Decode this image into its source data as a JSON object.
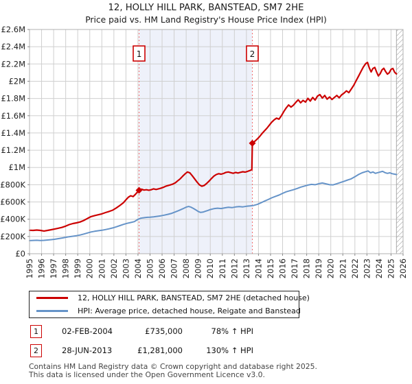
{
  "title": "12, HOLLY HILL PARK, BANSTEAD, SM7 2HE",
  "subtitle": "Price paid vs. HM Land Registry's House Price Index (HPI)",
  "legend": [
    {
      "label": "12, HOLLY HILL PARK, BANSTEAD, SM7 2HE (detached house)",
      "color": "#cc0000"
    },
    {
      "label": "HPI: Average price, detached house, Reigate and Banstead",
      "color": "#6593c8"
    }
  ],
  "annotations": [
    {
      "id": "1",
      "date": "02-FEB-2004",
      "price": "£735,000",
      "hpi_change": "78% ↑ HPI"
    },
    {
      "id": "2",
      "date": "28-JUN-2013",
      "price": "£1,281,000",
      "hpi_change": "130% ↑ HPI"
    }
  ],
  "footer": {
    "line1": "Contains HM Land Registry data © Crown copyright and database right 2025.",
    "line2": "This data is licensed under the Open Government Licence v3.0."
  },
  "chart_data": {
    "type": "line",
    "x_range": [
      1995,
      2026
    ],
    "y_range": [
      0,
      2600
    ],
    "y_unit": "thousand GBP",
    "grid": true,
    "hatch_start": 2025.45,
    "y_ticks": [
      "£0",
      "£200K",
      "£400K",
      "£600K",
      "£800K",
      "£1M",
      "£1.2M",
      "£1.4M",
      "£1.6M",
      "£1.8M",
      "£2M",
      "£2.2M",
      "£2.4M",
      "£2.6M"
    ],
    "x_ticks": [
      "1995",
      "1996",
      "1997",
      "1998",
      "1999",
      "2000",
      "2001",
      "2002",
      "2003",
      "2004",
      "2005",
      "2006",
      "2007",
      "2008",
      "2009",
      "2010",
      "2011",
      "2012",
      "2013",
      "2014",
      "2015",
      "2016",
      "2017",
      "2018",
      "2019",
      "2020",
      "2021",
      "2022",
      "2023",
      "2024",
      "2025",
      "2026"
    ],
    "colors": {
      "property": "#cc0000",
      "hpi": "#6593c8",
      "band": "#eef1fa",
      "grid": "#cfcfcf",
      "frame": "#b0b0b0",
      "marker_line": "#f26a6a",
      "tick": "#888888",
      "hatch": "#bcbcbc",
      "marker_box_text": "#111111"
    },
    "markers": [
      {
        "id": "1",
        "t": 2004.09,
        "value": 735,
        "date": "02-FEB-2004",
        "price_gbp": 735000,
        "vs_hpi": "78% ↑ HPI"
      },
      {
        "id": "2",
        "t": 2013.49,
        "value": 1281,
        "date": "28-JUN-2013",
        "price_gbp": 1281000,
        "vs_hpi": "130% ↑ HPI"
      }
    ],
    "series": [
      {
        "name": "property-price-line",
        "label": "12, HOLLY HILL PARK, BANSTEAD, SM7 2HE (detached house)",
        "color": "#cc0000",
        "width": 2.2,
        "points": [
          [
            1995.0,
            272
          ],
          [
            1995.3,
            270
          ],
          [
            1995.6,
            274
          ],
          [
            1995.9,
            270
          ],
          [
            1996.2,
            263
          ],
          [
            1996.5,
            270
          ],
          [
            1996.8,
            278
          ],
          [
            1997.1,
            287
          ],
          [
            1997.4,
            296
          ],
          [
            1997.7,
            305
          ],
          [
            1998.0,
            320
          ],
          [
            1998.3,
            338
          ],
          [
            1998.6,
            350
          ],
          [
            1998.9,
            358
          ],
          [
            1999.2,
            368
          ],
          [
            1999.5,
            386
          ],
          [
            1999.8,
            408
          ],
          [
            2000.1,
            430
          ],
          [
            2000.4,
            442
          ],
          [
            2000.7,
            452
          ],
          [
            2001.0,
            462
          ],
          [
            2001.3,
            477
          ],
          [
            2001.6,
            490
          ],
          [
            2001.9,
            505
          ],
          [
            2002.2,
            530
          ],
          [
            2002.5,
            560
          ],
          [
            2002.8,
            592
          ],
          [
            2003.0,
            625
          ],
          [
            2003.2,
            655
          ],
          [
            2003.4,
            672
          ],
          [
            2003.6,
            662
          ],
          [
            2003.8,
            690
          ],
          [
            2003.95,
            715
          ],
          [
            2004.09,
            735
          ],
          [
            2004.3,
            748
          ],
          [
            2004.5,
            738
          ],
          [
            2004.7,
            742
          ],
          [
            2004.9,
            736
          ],
          [
            2005.1,
            742
          ],
          [
            2005.3,
            752
          ],
          [
            2005.5,
            745
          ],
          [
            2005.7,
            752
          ],
          [
            2005.9,
            760
          ],
          [
            2006.1,
            770
          ],
          [
            2006.3,
            782
          ],
          [
            2006.5,
            790
          ],
          [
            2006.7,
            798
          ],
          [
            2006.9,
            808
          ],
          [
            2007.1,
            822
          ],
          [
            2007.3,
            845
          ],
          [
            2007.5,
            868
          ],
          [
            2007.7,
            898
          ],
          [
            2007.9,
            925
          ],
          [
            2008.1,
            948
          ],
          [
            2008.3,
            938
          ],
          [
            2008.5,
            905
          ],
          [
            2008.7,
            868
          ],
          [
            2008.9,
            832
          ],
          [
            2009.1,
            798
          ],
          [
            2009.3,
            782
          ],
          [
            2009.5,
            792
          ],
          [
            2009.7,
            815
          ],
          [
            2009.9,
            842
          ],
          [
            2010.1,
            872
          ],
          [
            2010.3,
            900
          ],
          [
            2010.5,
            918
          ],
          [
            2010.7,
            928
          ],
          [
            2010.9,
            922
          ],
          [
            2011.1,
            930
          ],
          [
            2011.3,
            943
          ],
          [
            2011.5,
            948
          ],
          [
            2011.7,
            940
          ],
          [
            2011.9,
            933
          ],
          [
            2012.1,
            942
          ],
          [
            2012.3,
            936
          ],
          [
            2012.5,
            944
          ],
          [
            2012.7,
            950
          ],
          [
            2012.9,
            946
          ],
          [
            2013.1,
            955
          ],
          [
            2013.3,
            965
          ],
          [
            2013.45,
            975
          ],
          [
            2013.49,
            1281
          ],
          [
            2013.7,
            1305
          ],
          [
            2013.9,
            1330
          ],
          [
            2014.1,
            1360
          ],
          [
            2014.3,
            1395
          ],
          [
            2014.5,
            1425
          ],
          [
            2014.7,
            1455
          ],
          [
            2014.9,
            1490
          ],
          [
            2015.1,
            1525
          ],
          [
            2015.3,
            1552
          ],
          [
            2015.5,
            1572
          ],
          [
            2015.7,
            1560
          ],
          [
            2015.9,
            1600
          ],
          [
            2016.1,
            1648
          ],
          [
            2016.3,
            1690
          ],
          [
            2016.5,
            1725
          ],
          [
            2016.7,
            1700
          ],
          [
            2016.9,
            1722
          ],
          [
            2017.1,
            1755
          ],
          [
            2017.3,
            1785
          ],
          [
            2017.5,
            1750
          ],
          [
            2017.7,
            1778
          ],
          [
            2017.9,
            1758
          ],
          [
            2018.1,
            1802
          ],
          [
            2018.3,
            1770
          ],
          [
            2018.5,
            1812
          ],
          [
            2018.7,
            1782
          ],
          [
            2018.9,
            1828
          ],
          [
            2019.1,
            1845
          ],
          [
            2019.3,
            1805
          ],
          [
            2019.5,
            1835
          ],
          [
            2019.7,
            1792
          ],
          [
            2019.9,
            1818
          ],
          [
            2020.1,
            1788
          ],
          [
            2020.3,
            1812
          ],
          [
            2020.5,
            1835
          ],
          [
            2020.7,
            1808
          ],
          [
            2020.9,
            1842
          ],
          [
            2021.1,
            1862
          ],
          [
            2021.3,
            1888
          ],
          [
            2021.5,
            1868
          ],
          [
            2021.7,
            1908
          ],
          [
            2021.9,
            1952
          ],
          [
            2022.1,
            2005
          ],
          [
            2022.3,
            2058
          ],
          [
            2022.5,
            2112
          ],
          [
            2022.7,
            2165
          ],
          [
            2022.9,
            2205
          ],
          [
            2023.05,
            2218
          ],
          [
            2023.2,
            2152
          ],
          [
            2023.35,
            2108
          ],
          [
            2023.5,
            2148
          ],
          [
            2023.65,
            2160
          ],
          [
            2023.8,
            2108
          ],
          [
            2023.95,
            2062
          ],
          [
            2024.1,
            2088
          ],
          [
            2024.25,
            2132
          ],
          [
            2024.4,
            2150
          ],
          [
            2024.55,
            2112
          ],
          [
            2024.7,
            2082
          ],
          [
            2024.85,
            2098
          ],
          [
            2025.0,
            2138
          ],
          [
            2025.15,
            2148
          ],
          [
            2025.3,
            2105
          ],
          [
            2025.45,
            2085
          ]
        ]
      },
      {
        "name": "hpi-line",
        "label": "HPI: Average price, detached house, Reigate and Banstead",
        "color": "#6593c8",
        "width": 2,
        "points": [
          [
            1995.0,
            152
          ],
          [
            1995.3,
            154
          ],
          [
            1995.6,
            156
          ],
          [
            1995.9,
            153
          ],
          [
            1996.2,
            155
          ],
          [
            1996.5,
            159
          ],
          [
            1996.8,
            163
          ],
          [
            1997.1,
            168
          ],
          [
            1997.4,
            175
          ],
          [
            1997.7,
            182
          ],
          [
            1998.0,
            190
          ],
          [
            1998.3,
            197
          ],
          [
            1998.6,
            203
          ],
          [
            1998.9,
            209
          ],
          [
            1999.2,
            217
          ],
          [
            1999.5,
            228
          ],
          [
            1999.8,
            240
          ],
          [
            2000.1,
            252
          ],
          [
            2000.4,
            260
          ],
          [
            2000.7,
            266
          ],
          [
            2001.0,
            272
          ],
          [
            2001.3,
            280
          ],
          [
            2001.6,
            289
          ],
          [
            2001.9,
            299
          ],
          [
            2002.2,
            312
          ],
          [
            2002.5,
            326
          ],
          [
            2002.8,
            340
          ],
          [
            2003.1,
            352
          ],
          [
            2003.4,
            362
          ],
          [
            2003.7,
            372
          ],
          [
            2004.0,
            398
          ],
          [
            2004.2,
            410
          ],
          [
            2004.4,
            416
          ],
          [
            2004.6,
            420
          ],
          [
            2004.8,
            422
          ],
          [
            2005.0,
            424
          ],
          [
            2005.3,
            428
          ],
          [
            2005.6,
            433
          ],
          [
            2005.9,
            440
          ],
          [
            2006.2,
            448
          ],
          [
            2006.5,
            457
          ],
          [
            2006.8,
            468
          ],
          [
            2007.1,
            484
          ],
          [
            2007.4,
            502
          ],
          [
            2007.7,
            520
          ],
          [
            2008.0,
            540
          ],
          [
            2008.2,
            548
          ],
          [
            2008.4,
            540
          ],
          [
            2008.6,
            525
          ],
          [
            2008.8,
            508
          ],
          [
            2009.0,
            490
          ],
          [
            2009.2,
            479
          ],
          [
            2009.4,
            483
          ],
          [
            2009.6,
            492
          ],
          [
            2009.8,
            502
          ],
          [
            2010.0,
            512
          ],
          [
            2010.3,
            522
          ],
          [
            2010.6,
            528
          ],
          [
            2010.9,
            524
          ],
          [
            2011.2,
            532
          ],
          [
            2011.5,
            538
          ],
          [
            2011.8,
            534
          ],
          [
            2012.1,
            542
          ],
          [
            2012.4,
            546
          ],
          [
            2012.7,
            543
          ],
          [
            2013.0,
            550
          ],
          [
            2013.3,
            554
          ],
          [
            2013.6,
            560
          ],
          [
            2013.9,
            572
          ],
          [
            2014.2,
            590
          ],
          [
            2014.5,
            610
          ],
          [
            2014.8,
            628
          ],
          [
            2015.1,
            648
          ],
          [
            2015.4,
            665
          ],
          [
            2015.7,
            680
          ],
          [
            2016.0,
            700
          ],
          [
            2016.3,
            718
          ],
          [
            2016.6,
            730
          ],
          [
            2016.9,
            742
          ],
          [
            2017.2,
            756
          ],
          [
            2017.5,
            772
          ],
          [
            2017.8,
            784
          ],
          [
            2018.1,
            796
          ],
          [
            2018.4,
            804
          ],
          [
            2018.7,
            800
          ],
          [
            2019.0,
            812
          ],
          [
            2019.3,
            820
          ],
          [
            2019.6,
            810
          ],
          [
            2019.9,
            800
          ],
          [
            2020.2,
            798
          ],
          [
            2020.5,
            812
          ],
          [
            2020.8,
            825
          ],
          [
            2021.1,
            840
          ],
          [
            2021.4,
            855
          ],
          [
            2021.7,
            868
          ],
          [
            2022.0,
            892
          ],
          [
            2022.3,
            918
          ],
          [
            2022.6,
            938
          ],
          [
            2022.9,
            952
          ],
          [
            2023.1,
            960
          ],
          [
            2023.3,
            938
          ],
          [
            2023.5,
            948
          ],
          [
            2023.7,
            932
          ],
          [
            2023.9,
            940
          ],
          [
            2024.1,
            948
          ],
          [
            2024.3,
            955
          ],
          [
            2024.5,
            940
          ],
          [
            2024.7,
            932
          ],
          [
            2024.9,
            938
          ],
          [
            2025.1,
            928
          ],
          [
            2025.3,
            922
          ],
          [
            2025.45,
            918
          ]
        ]
      }
    ]
  }
}
